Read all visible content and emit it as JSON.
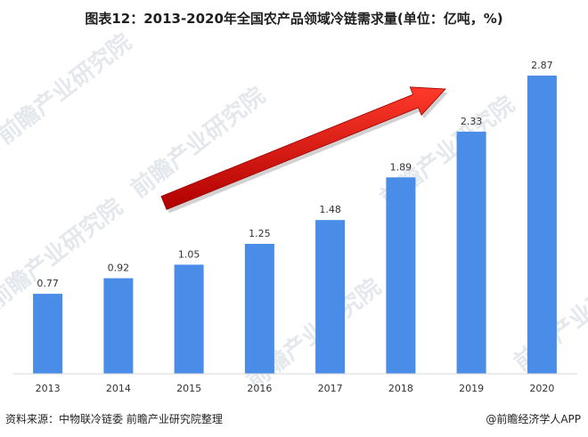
{
  "chart_data": {
    "type": "bar",
    "title": "图表12：2013-2020年全国农产品领域冷链需求量(单位：亿吨，%)",
    "categories": [
      "2013",
      "2014",
      "2015",
      "2016",
      "2017",
      "2018",
      "2019",
      "2020"
    ],
    "values": [
      0.77,
      0.92,
      1.05,
      1.25,
      1.48,
      1.89,
      2.33,
      2.87
    ],
    "data_labels": [
      "0.77",
      "0.92",
      "1.05",
      "1.25",
      "1.48",
      "1.89",
      "2.33",
      "2.87"
    ],
    "xlabel": "",
    "ylabel": "",
    "ylim": [
      0,
      3.1
    ],
    "grid": false,
    "bar_color": "#4a8de8",
    "arrow_color": "#e01010",
    "annotation": "trend-arrow-up"
  },
  "footer": {
    "source": "资料来源：中物联冷链委 前瞻产业研究院整理",
    "brand": "@前瞻经济学人APP"
  },
  "watermark": "前瞻产业研究院"
}
